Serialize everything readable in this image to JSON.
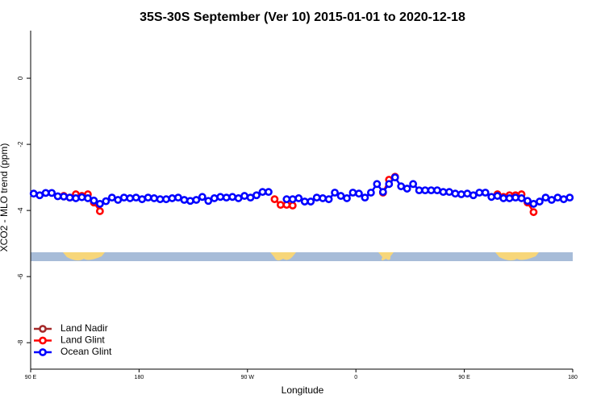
{
  "chart_data": {
    "type": "line",
    "title": "35S-30S September (Ver 10)   2015-01-01 to 2020-12-18",
    "xlabel": "Longitude",
    "ylabel": "XCO2 - MLO trend (ppm)",
    "xlim": [
      90,
      540
    ],
    "ylim": [
      -8.8,
      1.44
    ],
    "xticks": [
      {
        "value": 90,
        "label": "90 E"
      },
      {
        "value": 180,
        "label": "180"
      },
      {
        "value": 270,
        "label": "90 W"
      },
      {
        "value": 360,
        "label": "0"
      },
      {
        "value": 450,
        "label": "90 E"
      },
      {
        "value": 540,
        "label": "180"
      }
    ],
    "yticks": [
      0,
      -2,
      -4,
      -6,
      -8
    ],
    "legend": "bottomleft",
    "x": [
      92.5,
      97.5,
      102.5,
      107.5,
      112.5,
      117.5,
      122.5,
      127.5,
      132.5,
      137.5,
      142.5,
      147.5,
      152.5,
      157.5,
      162.5,
      167.5,
      172.5,
      177.5,
      182.5,
      187.5,
      192.5,
      197.5,
      202.5,
      207.5,
      212.5,
      217.5,
      222.5,
      227.5,
      232.5,
      237.5,
      242.5,
      247.5,
      252.5,
      257.5,
      262.5,
      267.5,
      272.5,
      277.5,
      282.5,
      287.5,
      292.5,
      297.5,
      302.5,
      307.5,
      312.5,
      317.5,
      322.5,
      327.5,
      332.5,
      337.5,
      342.5,
      347.5,
      352.5,
      357.5,
      362.5,
      367.5,
      372.5,
      377.5,
      382.5,
      387.5,
      392.5,
      397.5,
      402.5,
      407.5,
      412.5,
      417.5,
      422.5,
      427.5,
      432.5,
      437.5,
      442.5,
      447.5,
      452.5,
      457.5,
      462.5,
      467.5,
      472.5,
      477.5,
      482.5,
      487.5,
      492.5,
      497.5,
      502.5,
      507.5,
      512.5,
      517.5,
      522.5,
      527.5,
      532.5,
      537.5
    ],
    "series": [
      {
        "name": "Land Nadir",
        "color": "#a52a2a",
        "values": [
          null,
          null,
          null,
          null,
          null,
          null,
          null,
          null,
          null,
          null,
          null,
          null,
          null,
          null,
          null,
          null,
          null,
          null,
          null,
          null,
          null,
          null,
          null,
          null,
          null,
          null,
          null,
          null,
          null,
          null,
          null,
          null,
          null,
          null,
          null,
          null,
          null,
          null,
          null,
          null,
          null,
          null,
          null,
          null,
          null,
          null,
          null,
          null,
          null,
          null,
          null,
          null,
          null,
          null,
          null,
          null,
          null,
          null,
          null,
          null,
          null,
          null,
          null,
          null,
          null,
          null,
          null,
          null,
          null,
          null,
          null,
          null,
          null,
          null,
          null,
          null,
          null,
          null,
          null,
          null,
          null,
          null,
          null,
          null,
          null,
          null,
          null,
          null,
          null,
          null
        ]
      },
      {
        "name": "Land Glint",
        "color": "#ff0000",
        "values": [
          null,
          null,
          null,
          null,
          null,
          -3.56,
          -3.61,
          -3.51,
          -3.56,
          -3.51,
          -3.76,
          -4.02,
          null,
          null,
          null,
          null,
          null,
          null,
          null,
          null,
          null,
          null,
          null,
          null,
          null,
          null,
          null,
          null,
          null,
          null,
          null,
          null,
          null,
          null,
          null,
          null,
          null,
          null,
          null,
          null,
          -3.66,
          -3.83,
          -3.83,
          -3.85,
          null,
          null,
          null,
          null,
          null,
          null,
          null,
          null,
          null,
          null,
          null,
          null,
          null,
          null,
          -3.46,
          -3.07,
          -2.98,
          null,
          null,
          null,
          null,
          null,
          null,
          null,
          null,
          null,
          null,
          null,
          null,
          null,
          null,
          null,
          null,
          -3.51,
          -3.59,
          -3.54,
          -3.54,
          -3.51,
          -3.76,
          -4.05,
          null,
          null,
          null,
          null,
          null,
          null
        ]
      },
      {
        "name": "Ocean Glint",
        "color": "#0000ff",
        "values": [
          -3.49,
          -3.54,
          -3.47,
          -3.47,
          -3.57,
          -3.58,
          -3.61,
          -3.63,
          -3.6,
          -3.63,
          -3.7,
          -3.8,
          -3.72,
          -3.61,
          -3.68,
          -3.61,
          -3.63,
          -3.61,
          -3.66,
          -3.61,
          -3.63,
          -3.66,
          -3.66,
          -3.63,
          -3.61,
          -3.68,
          -3.71,
          -3.68,
          -3.59,
          -3.71,
          -3.63,
          -3.59,
          -3.61,
          -3.59,
          -3.63,
          -3.56,
          -3.61,
          -3.54,
          -3.44,
          -3.44,
          null,
          null,
          -3.66,
          -3.66,
          -3.63,
          -3.73,
          -3.73,
          -3.61,
          -3.63,
          -3.66,
          -3.46,
          -3.56,
          -3.63,
          -3.46,
          -3.49,
          -3.61,
          -3.46,
          -3.2,
          -3.44,
          -3.2,
          -3.0,
          -3.27,
          -3.34,
          -3.2,
          -3.39,
          -3.39,
          -3.39,
          -3.39,
          -3.44,
          -3.44,
          -3.49,
          -3.51,
          -3.49,
          -3.54,
          -3.46,
          -3.46,
          -3.59,
          -3.56,
          -3.63,
          -3.63,
          -3.61,
          -3.63,
          -3.71,
          -3.8,
          -3.73,
          -3.61,
          -3.68,
          -3.61,
          -3.66,
          -3.61
        ]
      }
    ]
  }
}
